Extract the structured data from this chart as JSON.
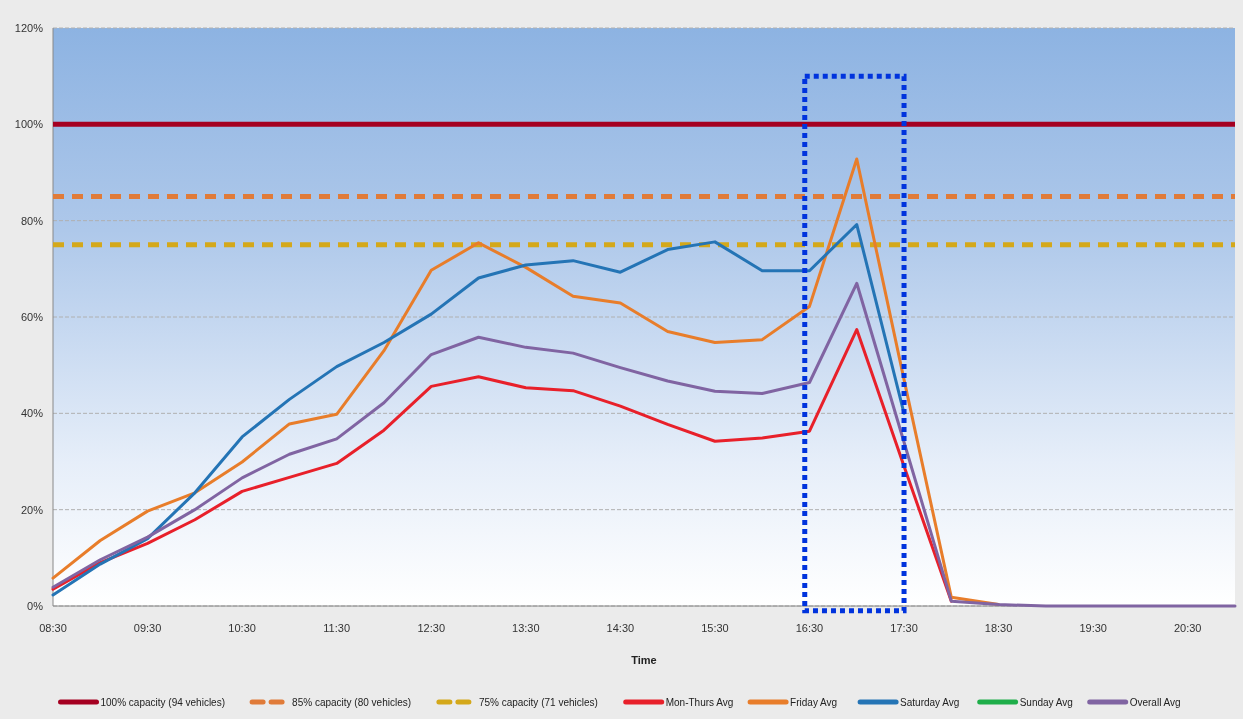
{
  "chart_data": {
    "type": "line",
    "xlabel": "Time",
    "categories": [
      "08:30",
      null,
      "09:30",
      null,
      "10:30",
      null,
      "11:30",
      null,
      "12:30",
      null,
      "13:30",
      null,
      "14:30",
      null,
      "15:30",
      null,
      "16:30",
      null,
      "17:30",
      null,
      "18:30",
      null,
      "19:30",
      null,
      "20:30",
      null
    ],
    "ylim": [
      0,
      120
    ],
    "yticks": [
      {
        "value": 0,
        "label": "0%"
      },
      {
        "value": 20,
        "label": "20%"
      },
      {
        "value": 40,
        "label": "40%"
      },
      {
        "value": 60,
        "label": "60%"
      },
      {
        "value": 80,
        "label": "80%"
      },
      {
        "value": 100,
        "label": "100%"
      },
      {
        "value": 120,
        "label": "120%"
      }
    ],
    "grid": "y",
    "legend": "bottom",
    "line_style": "solid",
    "marker": "none",
    "ref_lines": [
      {
        "axis": "y",
        "value": 100,
        "label": "100% capacity (94 vehicles)",
        "color": "#a50021",
        "line_style": "solid"
      },
      {
        "axis": "y",
        "value": 85,
        "label": "85% capacity (80 vehicles)",
        "color": "#e07b39",
        "line_style": "dashed"
      },
      {
        "axis": "y",
        "value": 75,
        "label": "75% capacity (71 vehicles)",
        "color": "#d4a81a",
        "line_style": "dashed"
      }
    ],
    "series": [
      {
        "name": "Mon-Thurs Avg",
        "color": "#e8202a",
        "values": [
          3.5,
          9,
          13,
          17.9,
          23.8,
          26.7,
          29.6,
          36.5,
          45.6,
          47.6,
          45.3,
          44.7,
          41.5,
          37.7,
          34.2,
          34.9,
          36.3,
          57.4,
          29,
          1,
          null,
          null,
          null,
          null,
          null,
          null
        ]
      },
      {
        "name": "Friday Avg",
        "color": "#e87d2a",
        "values": [
          5.8,
          13.6,
          19.7,
          23.5,
          29.9,
          37.8,
          39.8,
          53,
          69.7,
          75.4,
          70.3,
          64.3,
          62.9,
          57,
          54.7,
          55.3,
          62.2,
          92.8,
          47,
          1.8,
          0.3,
          null,
          null,
          null,
          null,
          null
        ]
      },
      {
        "name": "Saturday Avg",
        "color": "#2474b5",
        "values": [
          2.3,
          8.7,
          14,
          23.5,
          35.1,
          42.9,
          49.7,
          54.7,
          60.6,
          68.1,
          70.8,
          71.7,
          69.3,
          74,
          75.6,
          69.6,
          69.6,
          79.2,
          40,
          null,
          null,
          null,
          null,
          null,
          null,
          null
        ]
      },
      {
        "name": "Sunday Avg",
        "color": "#1fae4a",
        "values": [
          null,
          null,
          null,
          null,
          null,
          null,
          null,
          null,
          null,
          null,
          null,
          null,
          null,
          null,
          null,
          null,
          null,
          null,
          null,
          null,
          null,
          null,
          null,
          null,
          null,
          null
        ]
      },
      {
        "name": "Overall Avg",
        "color": "#8064a2",
        "values": [
          3.9,
          9.6,
          14.3,
          20,
          26.6,
          31.5,
          34.7,
          42.2,
          52.2,
          55.8,
          53.7,
          52.5,
          49.5,
          46.7,
          44.6,
          44.1,
          46.4,
          67,
          34,
          1,
          0.3,
          0,
          0,
          0,
          0,
          0
        ]
      }
    ]
  }
}
